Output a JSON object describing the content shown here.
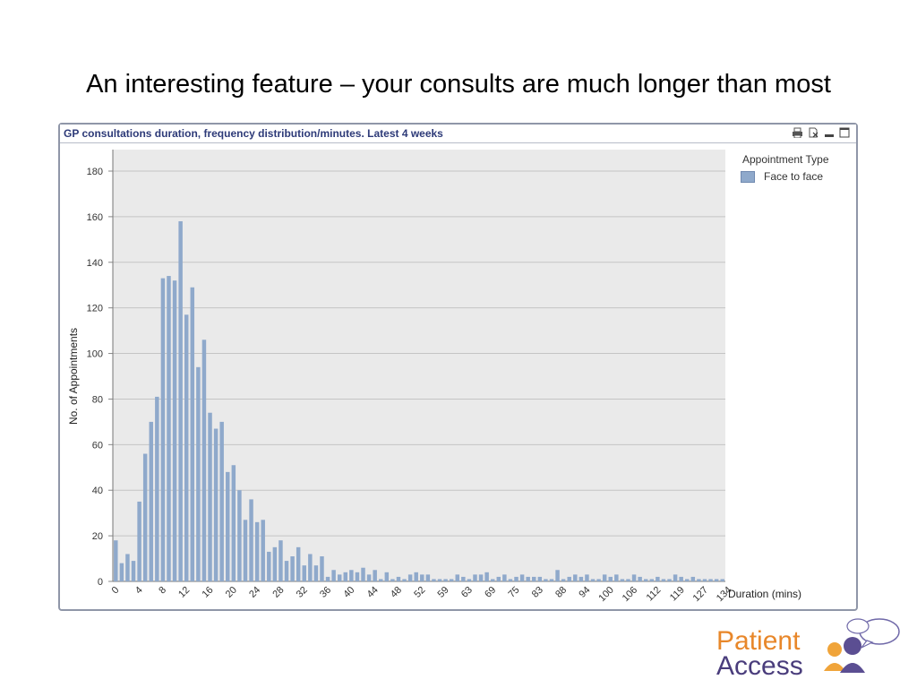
{
  "slide": {
    "title": "An interesting feature – your consults are much longer than most"
  },
  "panel": {
    "caption": "GP consultations duration, frequency distribution/minutes. Latest 4 weeks",
    "icons": [
      "print-icon",
      "export-excel-icon",
      "minimize-icon",
      "maximize-icon"
    ]
  },
  "legend": {
    "title": "Appointment Type",
    "items": [
      "Face to face"
    ]
  },
  "logo": {
    "word1": "Patient",
    "word2": "Access"
  },
  "chart_data": {
    "type": "bar",
    "title": "GP consultations duration, frequency distribution/minutes. Latest 4 weeks",
    "xlabel": "Duration (mins)",
    "ylabel": "No. of Appointments",
    "ylim": [
      0,
      180
    ],
    "yticks": [
      0,
      20,
      40,
      60,
      80,
      100,
      120,
      140,
      160,
      180
    ],
    "grid": true,
    "legend_position": "top-right",
    "bar_color": "#8fa9cb",
    "plot_background": "#eaeaea",
    "x_tick_labels": [
      "0",
      "4",
      "8",
      "12",
      "16",
      "20",
      "24",
      "28",
      "32",
      "36",
      "40",
      "44",
      "48",
      "52",
      "59",
      "63",
      "69",
      "75",
      "83",
      "88",
      "94",
      "100",
      "106",
      "112",
      "119",
      "127",
      "134"
    ],
    "x_tick_every": 4,
    "series": [
      {
        "name": "Face to face",
        "values": [
          18,
          8,
          12,
          9,
          35,
          56,
          70,
          81,
          133,
          134,
          132,
          158,
          117,
          129,
          94,
          106,
          74,
          67,
          70,
          48,
          51,
          40,
          27,
          36,
          26,
          27,
          13,
          15,
          18,
          9,
          11,
          15,
          7,
          12,
          7,
          11,
          2,
          5,
          3,
          4,
          5,
          4,
          6,
          3,
          5,
          1,
          4,
          1,
          2,
          1,
          3,
          4,
          3,
          3,
          1,
          1,
          1,
          1,
          3,
          2,
          1,
          3,
          3,
          4,
          1,
          2,
          3,
          1,
          2,
          3,
          2,
          2,
          2,
          1,
          1,
          5,
          1,
          2,
          3,
          2,
          3,
          1,
          1,
          3,
          2,
          3,
          1,
          1,
          3,
          2,
          1,
          1,
          2,
          1,
          1,
          3,
          2,
          1,
          2,
          1,
          1,
          1,
          1,
          1
        ]
      }
    ]
  }
}
